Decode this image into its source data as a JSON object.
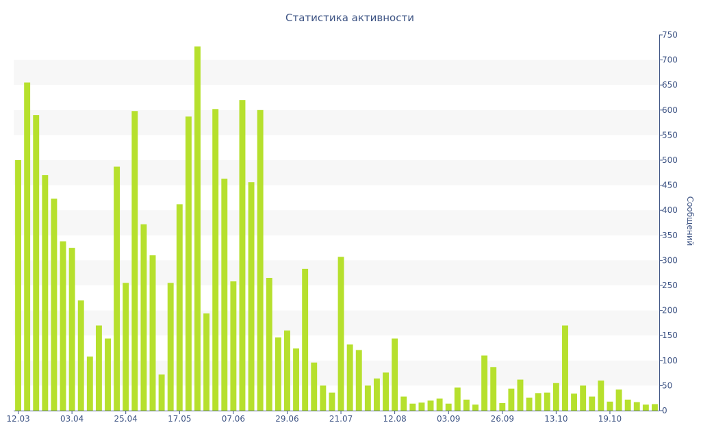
{
  "chart_data": {
    "type": "bar",
    "title": "Статистика активности",
    "xlabel": "",
    "ylabel": "Сообщений",
    "ylim": [
      0,
      750
    ],
    "yticks": [
      0,
      50,
      100,
      150,
      200,
      250,
      300,
      350,
      400,
      450,
      500,
      550,
      600,
      650,
      700,
      750
    ],
    "y_axis_position": "right",
    "grid": "alternating-bands",
    "bar_color": "#b6e02d",
    "text_color": "#3e5484",
    "x_tick_labels": [
      {
        "index": 0,
        "label": "12.03"
      },
      {
        "index": 6,
        "label": "03.04"
      },
      {
        "index": 12,
        "label": "25.04"
      },
      {
        "index": 18,
        "label": "17.05"
      },
      {
        "index": 24,
        "label": "07.06"
      },
      {
        "index": 30,
        "label": "29.06"
      },
      {
        "index": 36,
        "label": "21.07"
      },
      {
        "index": 42,
        "label": "12.08"
      },
      {
        "index": 48,
        "label": "03.09"
      },
      {
        "index": 54,
        "label": "26.09"
      },
      {
        "index": 60,
        "label": "13.10"
      },
      {
        "index": 66,
        "label": "19.10"
      }
    ],
    "values": [
      500,
      655,
      590,
      470,
      423,
      338,
      325,
      220,
      108,
      170,
      144,
      487,
      255,
      598,
      372,
      310,
      72,
      255,
      412,
      587,
      727,
      194,
      602,
      463,
      258,
      620,
      456,
      600,
      265,
      146,
      160,
      124,
      283,
      96,
      50,
      36,
      307,
      132,
      121,
      50,
      64,
      76,
      144,
      28,
      14,
      16,
      20,
      24,
      14,
      46,
      22,
      12,
      110,
      87,
      15,
      44,
      62,
      26,
      35,
      36,
      55,
      170,
      34,
      50,
      28,
      60,
      18,
      42,
      22,
      17,
      12,
      13
    ]
  }
}
